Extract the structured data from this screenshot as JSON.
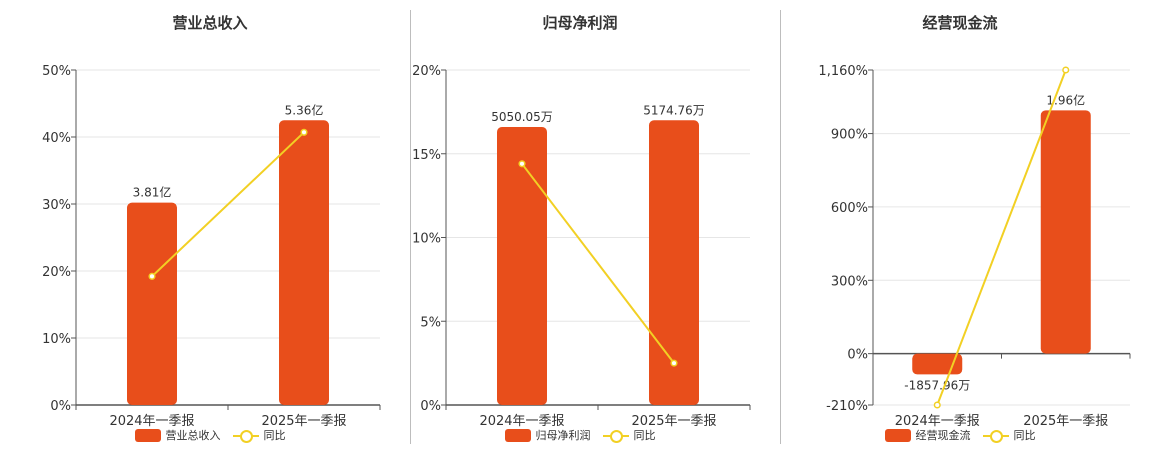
{
  "colors": {
    "bar": "#e84e1b",
    "line": "#f2d024",
    "grid": "#e6e6e6",
    "axis": "#555555"
  },
  "chart_data": [
    {
      "type": "bar",
      "title": "营业总收入",
      "categories": [
        "2024年一季报",
        "2025年一季报"
      ],
      "series": [
        {
          "name": "营业总收入",
          "type": "bar",
          "values": [
            30.2,
            42.5
          ],
          "data_labels": [
            "3.81亿",
            "5.36亿"
          ]
        },
        {
          "name": "同比",
          "type": "line",
          "values": [
            19.2,
            40.7
          ]
        }
      ],
      "yticks": [
        "0%",
        "10%",
        "20%",
        "30%",
        "40%",
        "50%"
      ],
      "ylim": [
        0,
        50
      ],
      "grid": true,
      "legend_position": "bottom"
    },
    {
      "type": "bar",
      "title": "归母净利润",
      "categories": [
        "2024年一季报",
        "2025年一季报"
      ],
      "series": [
        {
          "name": "归母净利润",
          "type": "bar",
          "values": [
            16.6,
            17.0
          ],
          "data_labels": [
            "5050.05万",
            "5174.76万"
          ]
        },
        {
          "name": "同比",
          "type": "line",
          "values": [
            14.4,
            2.5
          ]
        }
      ],
      "yticks": [
        "0%",
        "5%",
        "10%",
        "15%",
        "20%"
      ],
      "ylim": [
        0,
        20
      ],
      "grid": true,
      "legend_position": "bottom"
    },
    {
      "type": "bar",
      "title": "经营现金流",
      "categories": [
        "2024年一季报",
        "2025年一季报"
      ],
      "series": [
        {
          "name": "经营现金流",
          "type": "bar",
          "values": [
            -85,
            995
          ],
          "data_labels": [
            "-1857.96万",
            "1.96亿"
          ]
        },
        {
          "name": "同比",
          "type": "line",
          "values": [
            -210,
            1160
          ]
        }
      ],
      "yticks": [
        "-210%",
        "0%",
        "300%",
        "600%",
        "900%",
        "1,160%"
      ],
      "ytick_values": [
        -210,
        0,
        300,
        600,
        900,
        1160
      ],
      "ylim": [
        -210,
        1160
      ],
      "grid": true,
      "legend_position": "bottom"
    }
  ]
}
